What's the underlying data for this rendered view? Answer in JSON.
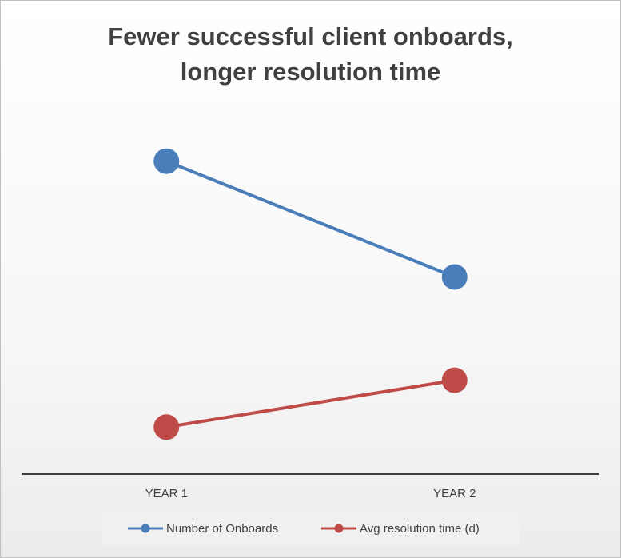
{
  "chart_data": {
    "type": "line",
    "title": "Fewer successful client onboards, longer resolution time",
    "title_lines": [
      "Fewer successful client onboards,",
      "longer resolution time"
    ],
    "categories": [
      "YEAR 1",
      "YEAR 2"
    ],
    "series": [
      {
        "name": "Number of Onboards",
        "values": [
          100,
          63
        ],
        "color": "#4a7ebb"
      },
      {
        "name": "Avg resolution time (d)",
        "values": [
          15,
          30
        ],
        "color": "#be4b48"
      }
    ],
    "xlabel": "",
    "ylabel": "",
    "ylim": [
      0,
      115
    ],
    "grid": false,
    "legend_position": "bottom"
  }
}
